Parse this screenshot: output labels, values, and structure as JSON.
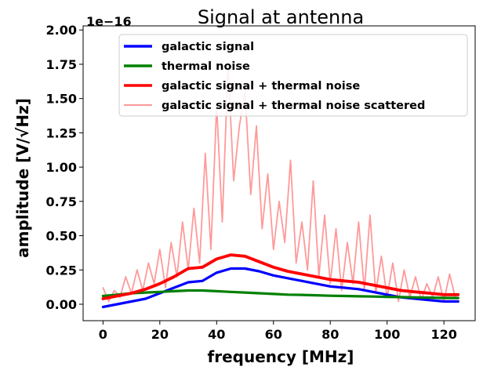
{
  "chart_data": {
    "type": "line",
    "title": "Signal at antenna",
    "xlabel": "frequency [MHz]",
    "ylabel": "amplitude [V/√Hz]",
    "y_scale_label": "1e−16",
    "y_scale": 1e-16,
    "xlim": [
      -7,
      131
    ],
    "ylim": [
      -0.12,
      2.03
    ],
    "x_ticks": [
      0,
      20,
      40,
      60,
      80,
      100,
      120
    ],
    "x_tick_labels": [
      "0",
      "20",
      "40",
      "60",
      "80",
      "100",
      "120"
    ],
    "y_ticks": [
      0.0,
      0.25,
      0.5,
      0.75,
      1.0,
      1.25,
      1.5,
      1.75,
      2.0
    ],
    "y_tick_labels": [
      "0.00",
      "0.25",
      "0.50",
      "0.75",
      "1.00",
      "1.25",
      "1.50",
      "1.75",
      "2.00"
    ],
    "legend_position": "top-right",
    "series": [
      {
        "name": "galactic signal",
        "color": "#0000ff",
        "x": [
          0,
          5,
          10,
          15,
          20,
          25,
          30,
          35,
          40,
          45,
          50,
          55,
          60,
          65,
          70,
          75,
          80,
          85,
          90,
          95,
          100,
          105,
          110,
          115,
          120,
          125
        ],
        "values": [
          -0.02,
          0.0,
          0.02,
          0.04,
          0.08,
          0.12,
          0.16,
          0.17,
          0.23,
          0.26,
          0.26,
          0.24,
          0.21,
          0.19,
          0.17,
          0.15,
          0.13,
          0.12,
          0.11,
          0.09,
          0.07,
          0.05,
          0.04,
          0.03,
          0.02,
          0.02
        ]
      },
      {
        "name": "thermal noise",
        "color": "#008000",
        "x": [
          0,
          5,
          10,
          15,
          20,
          25,
          30,
          35,
          40,
          45,
          50,
          55,
          60,
          65,
          70,
          75,
          80,
          85,
          90,
          95,
          100,
          105,
          110,
          115,
          120,
          125
        ],
        "values": [
          0.06,
          0.07,
          0.08,
          0.085,
          0.09,
          0.095,
          0.1,
          0.1,
          0.095,
          0.09,
          0.085,
          0.08,
          0.075,
          0.07,
          0.068,
          0.065,
          0.062,
          0.06,
          0.058,
          0.056,
          0.054,
          0.052,
          0.05,
          0.048,
          0.046,
          0.045
        ]
      },
      {
        "name": "galactic signal + thermal noise",
        "color": "#ff0000",
        "x": [
          0,
          5,
          10,
          15,
          20,
          25,
          30,
          35,
          40,
          45,
          50,
          55,
          60,
          65,
          70,
          75,
          80,
          85,
          90,
          95,
          100,
          105,
          110,
          115,
          120,
          125
        ],
        "values": [
          0.04,
          0.06,
          0.08,
          0.11,
          0.15,
          0.2,
          0.26,
          0.27,
          0.33,
          0.36,
          0.35,
          0.31,
          0.27,
          0.24,
          0.22,
          0.2,
          0.18,
          0.17,
          0.16,
          0.14,
          0.12,
          0.1,
          0.09,
          0.08,
          0.07,
          0.07
        ]
      },
      {
        "name": "galactic signal + thermal noise scattered",
        "color": "#ff9999",
        "x": [
          0,
          2,
          4,
          6,
          8,
          10,
          12,
          14,
          16,
          18,
          20,
          22,
          24,
          26,
          28,
          30,
          32,
          34,
          36,
          38,
          40,
          42,
          44,
          46,
          48,
          50,
          52,
          54,
          56,
          58,
          60,
          62,
          64,
          66,
          68,
          70,
          72,
          74,
          76,
          78,
          80,
          82,
          84,
          86,
          88,
          90,
          92,
          94,
          96,
          98,
          100,
          102,
          104,
          106,
          108,
          110,
          112,
          114,
          116,
          118,
          120,
          122,
          124
        ],
        "values": [
          0.12,
          0.02,
          0.1,
          0.05,
          0.2,
          0.08,
          0.25,
          0.1,
          0.3,
          0.15,
          0.4,
          0.12,
          0.45,
          0.2,
          0.6,
          0.25,
          0.7,
          0.3,
          1.1,
          0.4,
          1.45,
          0.6,
          1.75,
          0.9,
          1.3,
          1.55,
          0.8,
          1.3,
          0.55,
          0.95,
          0.4,
          0.75,
          0.45,
          1.05,
          0.3,
          0.6,
          0.25,
          0.9,
          0.2,
          0.65,
          0.15,
          0.55,
          0.1,
          0.45,
          0.15,
          0.6,
          0.1,
          0.65,
          0.08,
          0.35,
          0.05,
          0.3,
          0.02,
          0.25,
          0.05,
          0.2,
          0.03,
          0.15,
          0.05,
          0.2,
          0.02,
          0.22,
          0.05
        ]
      }
    ]
  }
}
